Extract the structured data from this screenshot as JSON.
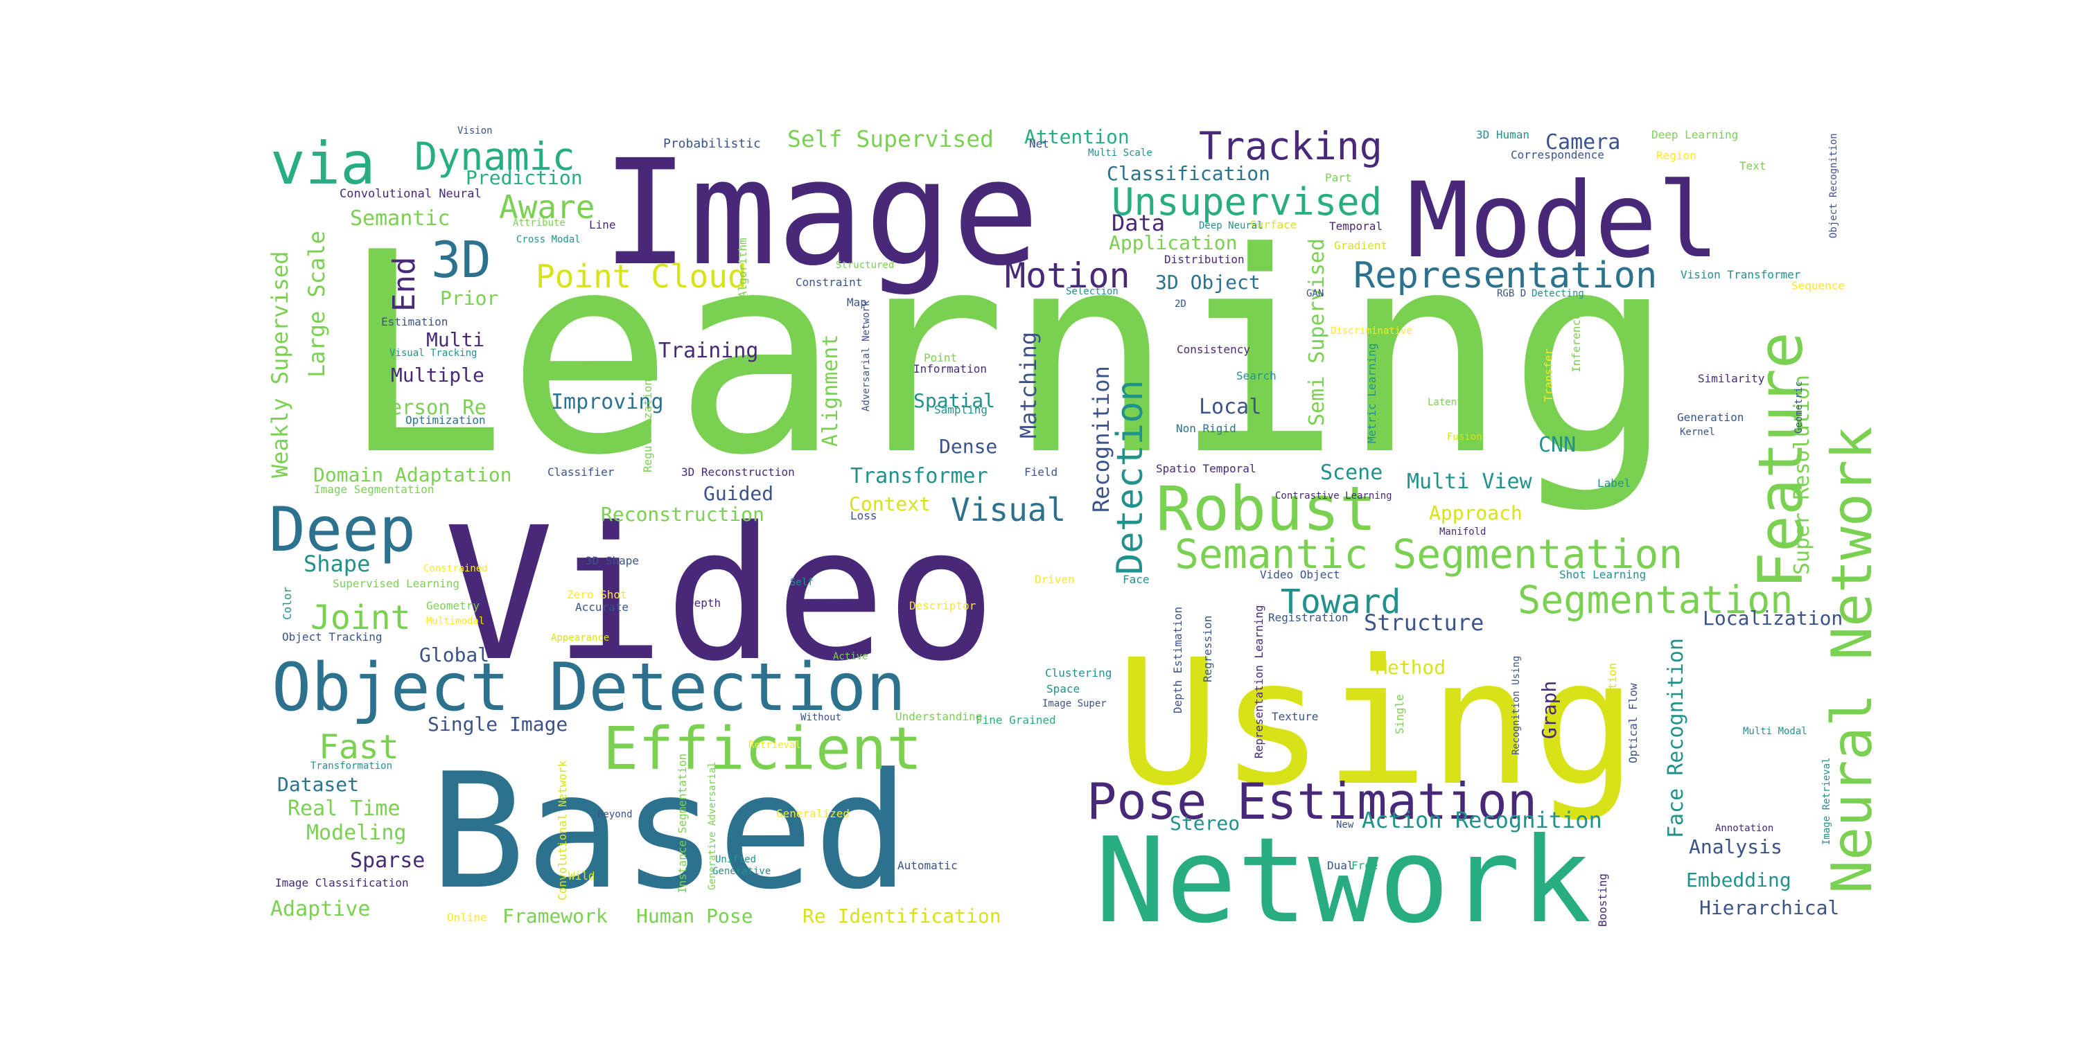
{
  "palette": {
    "purple": "#482878",
    "indigo": "#3b528b",
    "blue": "#2c728e",
    "teal": "#21918c",
    "green": "#27ad81",
    "lime": "#5ec962",
    "lgreen": "#7ad151",
    "yellow": "#d8e219",
    "bright": "#fde725"
  },
  "words": [
    {
      "text": "Learning",
      "color": "lgreen"
    },
    {
      "text": "Image",
      "color": "purple"
    },
    {
      "text": "Video",
      "color": "purple"
    },
    {
      "text": "Using",
      "color": "yellow"
    },
    {
      "text": "Based",
      "color": "blue"
    },
    {
      "text": "Network",
      "color": "green"
    },
    {
      "text": "Model",
      "color": "purple"
    },
    {
      "text": "Object Detection",
      "color": "blue"
    },
    {
      "text": "Deep",
      "color": "blue"
    },
    {
      "text": "Robust",
      "color": "lgreen"
    },
    {
      "text": "Feature",
      "color": "lgreen"
    },
    {
      "text": "Neural Network",
      "color": "lgreen"
    },
    {
      "text": "Efficient",
      "color": "lgreen"
    },
    {
      "text": "Pose Estimation",
      "color": "purple"
    },
    {
      "text": "Semantic Segmentation",
      "color": "lgreen"
    },
    {
      "text": "via",
      "color": "green"
    },
    {
      "text": "Tracking",
      "color": "purple"
    },
    {
      "text": "Unsupervised",
      "color": "green"
    },
    {
      "text": "3D",
      "color": "blue"
    },
    {
      "text": "Representation",
      "color": "blue"
    },
    {
      "text": "Segmentation",
      "color": "lgreen"
    },
    {
      "text": "Dynamic",
      "color": "green"
    },
    {
      "text": "Motion",
      "color": "purple"
    },
    {
      "text": "Point Cloud",
      "color": "yellow"
    },
    {
      "text": "Detection",
      "color": "teal"
    },
    {
      "text": "Toward",
      "color": "teal"
    },
    {
      "text": "Aware",
      "color": "lgreen"
    },
    {
      "text": "End",
      "color": "purple"
    },
    {
      "text": "Joint",
      "color": "lgreen"
    },
    {
      "text": "Fast",
      "color": "lgreen"
    },
    {
      "text": "Visual",
      "color": "blue"
    },
    {
      "text": "Weakly Supervised",
      "color": "lgreen"
    },
    {
      "text": "Large Scale",
      "color": "lgreen"
    },
    {
      "text": "Semi Supervised",
      "color": "lgreen"
    },
    {
      "text": "Matching",
      "color": "indigo"
    },
    {
      "text": "Recognition",
      "color": "indigo"
    },
    {
      "text": "Structure",
      "color": "indigo"
    },
    {
      "text": "Action Recognition",
      "color": "teal"
    },
    {
      "text": "Face Recognition",
      "color": "teal"
    },
    {
      "text": "Super Resolution",
      "color": "lgreen"
    },
    {
      "text": "Self Supervised",
      "color": "lgreen"
    },
    {
      "text": "Camera",
      "color": "indigo"
    },
    {
      "text": "Attention",
      "color": "green"
    },
    {
      "text": "Classification",
      "color": "blue"
    },
    {
      "text": "Prediction",
      "color": "green"
    },
    {
      "text": "Semantic",
      "color": "lgreen"
    },
    {
      "text": "Data",
      "color": "purple"
    },
    {
      "text": "Application",
      "color": "lgreen"
    },
    {
      "text": "3D Object",
      "color": "blue"
    },
    {
      "text": "Prior",
      "color": "lgreen"
    },
    {
      "text": "Training",
      "color": "purple"
    },
    {
      "text": "Multi",
      "color": "purple"
    },
    {
      "text": "Multiple",
      "color": "purple"
    },
    {
      "text": "Person Re",
      "color": "lgreen"
    },
    {
      "text": "Improving",
      "color": "blue"
    },
    {
      "text": "Alignment",
      "color": "lgreen"
    },
    {
      "text": "Spatial",
      "color": "teal"
    },
    {
      "text": "Dense",
      "color": "indigo"
    },
    {
      "text": "Local",
      "color": "indigo"
    },
    {
      "text": "CNN",
      "color": "teal"
    },
    {
      "text": "Scene",
      "color": "teal"
    },
    {
      "text": "Multi View",
      "color": "teal"
    },
    {
      "text": "Domain Adaptation",
      "color": "lgreen"
    },
    {
      "text": "Transformer",
      "color": "teal"
    },
    {
      "text": "Guided",
      "color": "indigo"
    },
    {
      "text": "Context",
      "color": "yellow"
    },
    {
      "text": "Reconstruction",
      "color": "lgreen"
    },
    {
      "text": "Approach",
      "color": "yellow"
    },
    {
      "text": "Shape",
      "color": "teal"
    },
    {
      "text": "Global",
      "color": "indigo"
    },
    {
      "text": "Method",
      "color": "yellow"
    },
    {
      "text": "Localization",
      "color": "indigo"
    },
    {
      "text": "Single Image",
      "color": "indigo"
    },
    {
      "text": "Dataset",
      "color": "blue"
    },
    {
      "text": "Real Time",
      "color": "lgreen"
    },
    {
      "text": "Modeling",
      "color": "lgreen"
    },
    {
      "text": "Sparse",
      "color": "purple"
    },
    {
      "text": "Adaptive",
      "color": "lgreen"
    },
    {
      "text": "Framework",
      "color": "lgreen"
    },
    {
      "text": "Human Pose",
      "color": "lgreen"
    },
    {
      "text": "Re Identification",
      "color": "yellow"
    },
    {
      "text": "Stereo",
      "color": "teal"
    },
    {
      "text": "Analysis",
      "color": "indigo"
    },
    {
      "text": "Embedding",
      "color": "teal"
    },
    {
      "text": "Hierarchical",
      "color": "indigo"
    },
    {
      "text": "Graph",
      "color": "purple"
    },
    {
      "text": "Convolutional Neural",
      "color": "purple"
    },
    {
      "text": "Probabilistic",
      "color": "indigo"
    },
    {
      "text": "Net",
      "color": "indigo"
    },
    {
      "text": "3D Human",
      "color": "teal"
    },
    {
      "text": "Deep Learning",
      "color": "lgreen"
    },
    {
      "text": "Correspondence",
      "color": "indigo"
    },
    {
      "text": "Region",
      "color": "bright"
    },
    {
      "text": "Text",
      "color": "lgreen"
    },
    {
      "text": "Part",
      "color": "lgreen"
    },
    {
      "text": "Temporal",
      "color": "purple"
    },
    {
      "text": "Gradient",
      "color": "yellow"
    },
    {
      "text": "Surface",
      "color": "yellow"
    },
    {
      "text": "Distribution",
      "color": "purple"
    },
    {
      "text": "Constraint",
      "color": "indigo"
    },
    {
      "text": "Algorithm",
      "color": "lgreen"
    },
    {
      "text": "Map",
      "color": "indigo"
    },
    {
      "text": "Point",
      "color": "lgreen"
    },
    {
      "text": "Information",
      "color": "purple"
    },
    {
      "text": "Sampling",
      "color": "teal"
    },
    {
      "text": "Consistency",
      "color": "purple"
    },
    {
      "text": "Search",
      "color": "teal"
    },
    {
      "text": "Non Rigid",
      "color": "blue"
    },
    {
      "text": "Spatio Temporal",
      "color": "purple"
    },
    {
      "text": "Optimization",
      "color": "blue"
    },
    {
      "text": "Estimation",
      "color": "indigo"
    },
    {
      "text": "Visual Tracking",
      "color": "teal"
    },
    {
      "text": "Classifier",
      "color": "indigo"
    },
    {
      "text": "3D Reconstruction",
      "color": "purple"
    },
    {
      "text": "Field",
      "color": "indigo"
    },
    {
      "text": "Loss",
      "color": "indigo"
    },
    {
      "text": "Image Segmentation",
      "color": "lgreen"
    },
    {
      "text": "3D Shape",
      "color": "indigo"
    },
    {
      "text": "Zero Shot",
      "color": "bright"
    },
    {
      "text": "Depth",
      "color": "purple"
    },
    {
      "text": "Accurate",
      "color": "indigo"
    },
    {
      "text": "Geometry",
      "color": "lgreen"
    },
    {
      "text": "Multimodal",
      "color": "bright"
    },
    {
      "text": "Supervised Learning",
      "color": "lgreen"
    },
    {
      "text": "Object Tracking",
      "color": "indigo"
    },
    {
      "text": "Appearance",
      "color": "yellow"
    },
    {
      "text": "Color",
      "color": "teal"
    },
    {
      "text": "Descriptor",
      "color": "bright"
    },
    {
      "text": "Driven",
      "color": "bright"
    },
    {
      "text": "Face",
      "color": "teal"
    },
    {
      "text": "Video Object",
      "color": "indigo"
    },
    {
      "text": "Registration",
      "color": "indigo"
    },
    {
      "text": "Shot Learning",
      "color": "teal"
    },
    {
      "text": "Clustering",
      "color": "teal"
    },
    {
      "text": "Space",
      "color": "teal"
    },
    {
      "text": "Image Super",
      "color": "indigo"
    },
    {
      "text": "Fine Grained",
      "color": "green"
    },
    {
      "text": "Understanding",
      "color": "lgreen"
    },
    {
      "text": "Without",
      "color": "indigo"
    },
    {
      "text": "Texture",
      "color": "indigo"
    },
    {
      "text": "Automatic",
      "color": "indigo"
    },
    {
      "text": "Free",
      "color": "green"
    },
    {
      "text": "Dual",
      "color": "indigo"
    },
    {
      "text": "New",
      "color": "indigo"
    },
    {
      "text": "Beyond",
      "color": "indigo"
    },
    {
      "text": "Generalized",
      "color": "bright"
    },
    {
      "text": "Wild",
      "color": "yellow"
    },
    {
      "text": "Unified",
      "color": "teal"
    },
    {
      "text": "Generative",
      "color": "teal"
    },
    {
      "text": "Online",
      "color": "bright"
    },
    {
      "text": "Image Classification",
      "color": "purple"
    },
    {
      "text": "Transformation",
      "color": "teal"
    },
    {
      "text": "Retrieval",
      "color": "bright"
    },
    {
      "text": "Annotation",
      "color": "purple"
    },
    {
      "text": "Multi Modal",
      "color": "teal"
    },
    {
      "text": "Boosting",
      "color": "purple"
    },
    {
      "text": "Object Segmentation",
      "color": "yellow"
    },
    {
      "text": "Optical Flow",
      "color": "indigo"
    },
    {
      "text": "Single",
      "color": "lgreen"
    },
    {
      "text": "Recognition Using",
      "color": "indigo"
    },
    {
      "text": "Depth Estimation",
      "color": "indigo"
    },
    {
      "text": "Regression",
      "color": "indigo"
    },
    {
      "text": "Representation Learning",
      "color": "purple"
    },
    {
      "text": "Instance Segmentation",
      "color": "lgreen"
    },
    {
      "text": "Generative Adversarial",
      "color": "lgreen"
    },
    {
      "text": "Convolutional Network",
      "color": "yellow"
    },
    {
      "text": "Self",
      "color": "teal"
    },
    {
      "text": "Active",
      "color": "lgreen"
    },
    {
      "text": "Contrastive Learning",
      "color": "purple"
    },
    {
      "text": "Manifold",
      "color": "purple"
    },
    {
      "text": "Label",
      "color": "teal"
    },
    {
      "text": "Generation",
      "color": "indigo"
    },
    {
      "text": "Kernel",
      "color": "indigo"
    },
    {
      "text": "Similarity",
      "color": "purple"
    },
    {
      "text": "Fusion",
      "color": "yellow"
    },
    {
      "text": "Latent",
      "color": "lgreen"
    },
    {
      "text": "Transfer",
      "color": "bright"
    },
    {
      "text": "Inference",
      "color": "lgreen"
    },
    {
      "text": "Metric Learning",
      "color": "teal"
    },
    {
      "text": "Discriminative",
      "color": "bright"
    },
    {
      "text": "GAN",
      "color": "indigo"
    },
    {
      "text": "RGB D",
      "color": "indigo"
    },
    {
      "text": "Detecting",
      "color": "teal"
    },
    {
      "text": "Vision Transformer",
      "color": "teal"
    },
    {
      "text": "Sequence",
      "color": "bright"
    },
    {
      "text": "Geometric",
      "color": "indigo"
    },
    {
      "text": "Object Recognition",
      "color": "indigo"
    },
    {
      "text": "Image Retrieval",
      "color": "teal"
    },
    {
      "text": "Adversarial Network",
      "color": "indigo"
    },
    {
      "text": "Regularization",
      "color": "lgreen"
    },
    {
      "text": "Vision",
      "color": "indigo"
    },
    {
      "text": "Multi Scale",
      "color": "teal"
    },
    {
      "text": "Deep Neural",
      "color": "teal"
    },
    {
      "text": "Attribute",
      "color": "lgreen"
    },
    {
      "text": "Cross Modal",
      "color": "teal"
    },
    {
      "text": "Line",
      "color": "purple"
    },
    {
      "text": "Structured",
      "color": "lgreen"
    },
    {
      "text": "Selection",
      "color": "teal"
    },
    {
      "text": "2D",
      "color": "indigo"
    },
    {
      "text": "Constrained",
      "color": "bright"
    }
  ]
}
